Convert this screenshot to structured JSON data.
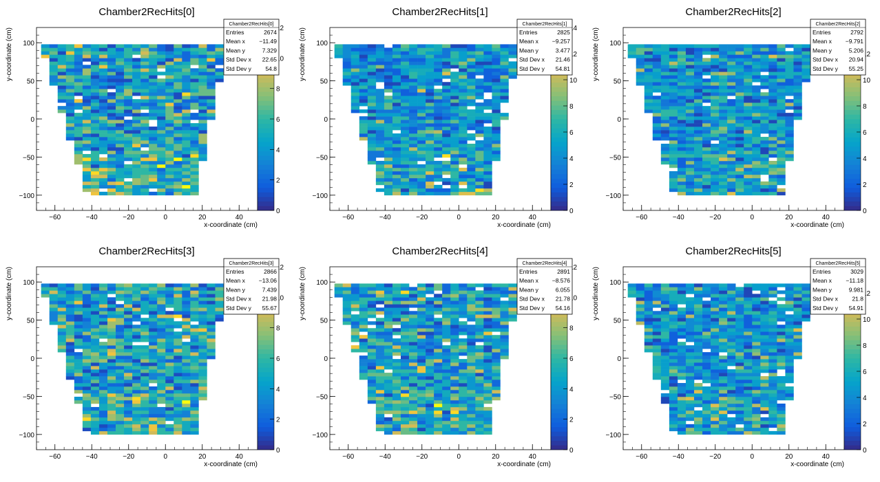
{
  "chart_data": [
    {
      "type": "heatmap",
      "title": "Chamber2RecHits[0]",
      "xlabel": "x-coordinate (cm)",
      "ylabel": "y-coordinate (cm)",
      "xlim": [
        -70,
        50
      ],
      "ylim": [
        -120,
        120
      ],
      "xticks": [
        -60,
        -40,
        -20,
        0,
        20,
        40
      ],
      "yticks": [
        -100,
        -50,
        0,
        50,
        100
      ],
      "zlim": [
        0,
        12
      ],
      "zticks": [
        0,
        2,
        4,
        6,
        8,
        10,
        12
      ],
      "stats": {
        "name": "Chamber2RecHits[0]",
        "rows": [
          {
            "label": "Entries",
            "value": "2674"
          },
          {
            "label": "Mean x",
            "value": "−11.49"
          },
          {
            "label": "Mean y",
            "value": "7.329"
          },
          {
            "label": "Std Dev x",
            "value": "22.65"
          },
          {
            "label": "Std Dev y",
            "value": "54.8"
          }
        ]
      }
    },
    {
      "type": "heatmap",
      "title": "Chamber2RecHits[1]",
      "xlabel": "x-coordinate (cm)",
      "ylabel": "y-coordinate (cm)",
      "xlim": [
        -70,
        50
      ],
      "ylim": [
        -120,
        120
      ],
      "xticks": [
        -60,
        -40,
        -20,
        0,
        20,
        40
      ],
      "yticks": [
        -100,
        -50,
        0,
        50,
        100
      ],
      "zlim": [
        0,
        14
      ],
      "zticks": [
        0,
        2,
        4,
        6,
        8,
        10,
        12,
        14
      ],
      "stats": {
        "name": "Chamber2RecHits[1]",
        "rows": [
          {
            "label": "Entries",
            "value": "2825"
          },
          {
            "label": "Mean x",
            "value": "−9.257"
          },
          {
            "label": "Mean y",
            "value": "3.477"
          },
          {
            "label": "Std Dev x",
            "value": "21.46"
          },
          {
            "label": "Std Dev y",
            "value": "54.81"
          }
        ]
      }
    },
    {
      "type": "heatmap",
      "title": "Chamber2RecHits[2]",
      "xlabel": "x-coordinate (cm)",
      "ylabel": "y-coordinate (cm)",
      "xlim": [
        -70,
        50
      ],
      "ylim": [
        -120,
        120
      ],
      "xticks": [
        -60,
        -40,
        -20,
        0,
        20,
        40
      ],
      "yticks": [
        -100,
        -50,
        0,
        50,
        100
      ],
      "zlim": [
        0,
        14
      ],
      "zticks": [
        0,
        2,
        4,
        6,
        8,
        10,
        12
      ],
      "stats": {
        "name": "Chamber2RecHits[2]",
        "rows": [
          {
            "label": "Entries",
            "value": "2792"
          },
          {
            "label": "Mean x",
            "value": "−9.791"
          },
          {
            "label": "Mean y",
            "value": "5.206"
          },
          {
            "label": "Std Dev x",
            "value": "20.94"
          },
          {
            "label": "Std Dev y",
            "value": "55.25"
          }
        ]
      }
    },
    {
      "type": "heatmap",
      "title": "Chamber2RecHits[3]",
      "xlabel": "x-coordinate (cm)",
      "ylabel": "y-coordinate (cm)",
      "xlim": [
        -70,
        50
      ],
      "ylim": [
        -120,
        120
      ],
      "xticks": [
        -60,
        -40,
        -20,
        0,
        20,
        40
      ],
      "yticks": [
        -100,
        -50,
        0,
        50,
        100
      ],
      "zlim": [
        0,
        12
      ],
      "zticks": [
        0,
        2,
        4,
        6,
        8,
        10,
        12
      ],
      "stats": {
        "name": "Chamber2RecHits[3]",
        "rows": [
          {
            "label": "Entries",
            "value": "2866"
          },
          {
            "label": "Mean x",
            "value": "−13.06"
          },
          {
            "label": "Mean y",
            "value": "7.439"
          },
          {
            "label": "Std Dev x",
            "value": "21.98"
          },
          {
            "label": "Std Dev y",
            "value": "55.67"
          }
        ]
      }
    },
    {
      "type": "heatmap",
      "title": "Chamber2RecHits[4]",
      "xlabel": "x-coordinate (cm)",
      "ylabel": "y-coordinate (cm)",
      "xlim": [
        -70,
        50
      ],
      "ylim": [
        -120,
        120
      ],
      "xticks": [
        -60,
        -40,
        -20,
        0,
        20,
        40
      ],
      "yticks": [
        -100,
        -50,
        0,
        50,
        100
      ],
      "zlim": [
        0,
        12
      ],
      "zticks": [
        0,
        2,
        4,
        6,
        8,
        10,
        12
      ],
      "stats": {
        "name": "Chamber2RecHits[4]",
        "rows": [
          {
            "label": "Entries",
            "value": "2891"
          },
          {
            "label": "Mean x",
            "value": "−8.576"
          },
          {
            "label": "Mean y",
            "value": "6.055"
          },
          {
            "label": "Std Dev x",
            "value": "21.78"
          },
          {
            "label": "Std Dev y",
            "value": "54.16"
          }
        ]
      }
    },
    {
      "type": "heatmap",
      "title": "Chamber2RecHits[5]",
      "xlabel": "x-coordinate (cm)",
      "ylabel": "y-coordinate (cm)",
      "xlim": [
        -70,
        50
      ],
      "ylim": [
        -120,
        120
      ],
      "xticks": [
        -60,
        -40,
        -20,
        0,
        20,
        40
      ],
      "yticks": [
        -100,
        -50,
        0,
        50,
        100
      ],
      "zlim": [
        0,
        14
      ],
      "zticks": [
        0,
        2,
        4,
        6,
        8,
        10,
        12
      ],
      "stats": {
        "name": "Chamber2RecHits[5]",
        "rows": [
          {
            "label": "Entries",
            "value": "3029"
          },
          {
            "label": "Mean x",
            "value": "−11.18"
          },
          {
            "label": "Mean y",
            "value": "9.981"
          },
          {
            "label": "Std Dev x",
            "value": "21.8"
          },
          {
            "label": "Std Dev y",
            "value": "54.91"
          }
        ]
      }
    }
  ],
  "colors": {
    "palette": [
      "#352a87",
      "#0f5cdd",
      "#1481d6",
      "#06a4ca",
      "#2eb7a4",
      "#87bf77",
      "#d1bb59",
      "#fec832",
      "#f9fb0e"
    ],
    "axis": "#000000",
    "stats_border": "#000000",
    "empty_bin": "#ffffff"
  }
}
